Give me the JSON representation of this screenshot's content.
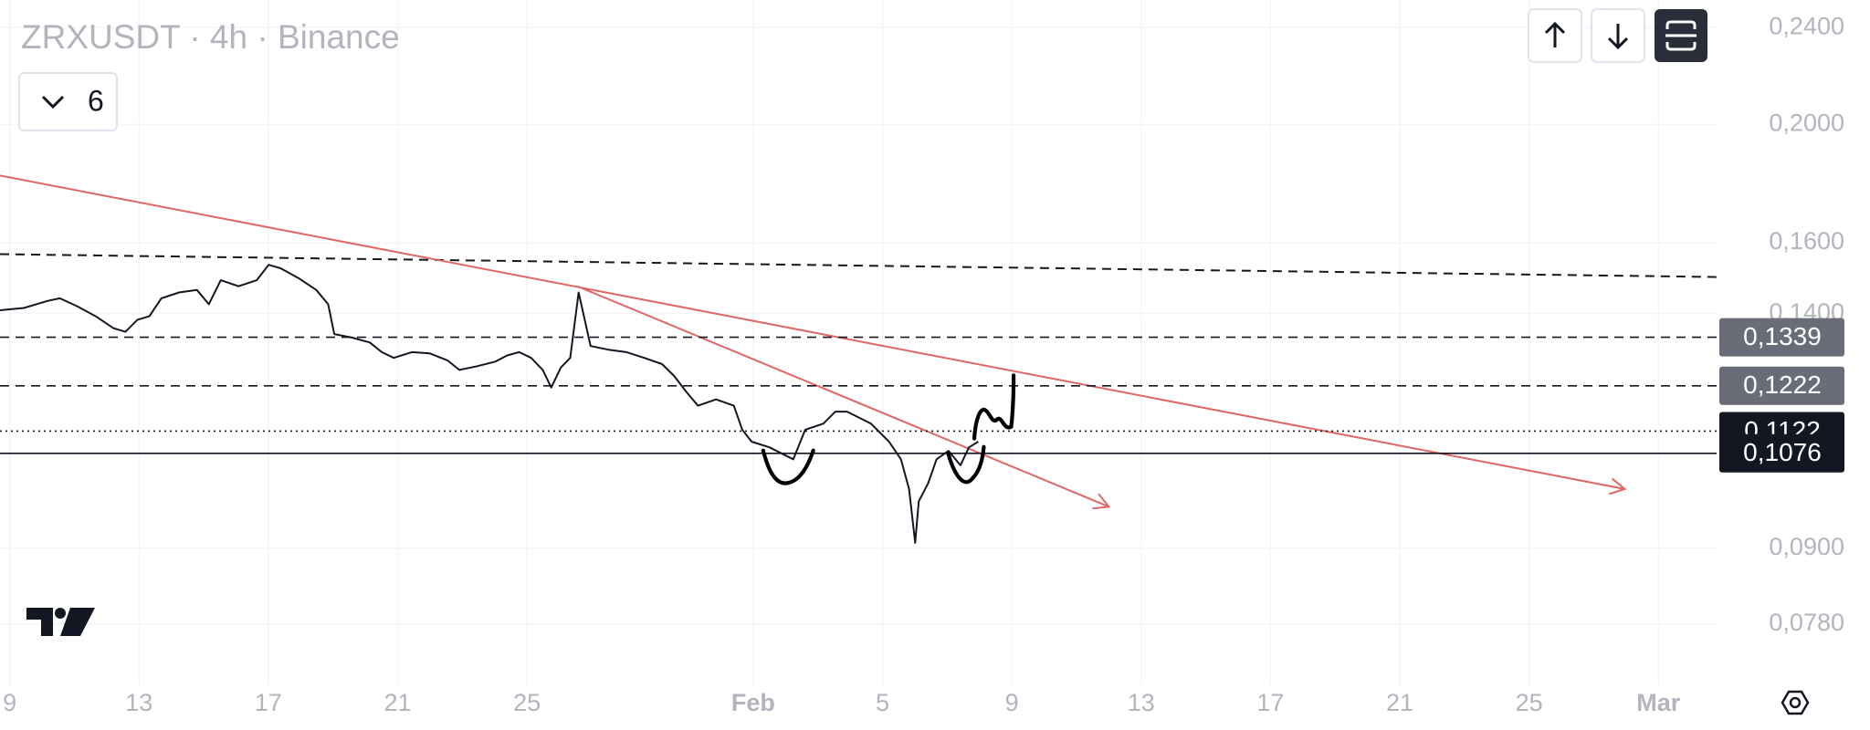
{
  "chart_data": {
    "type": "line",
    "title": "ZRXUSDT · 4h · Binance",
    "indicator_count": 6,
    "log_scale": true,
    "grid": true,
    "x": [
      8.7,
      9.44,
      10.18,
      10.55,
      11.1,
      11.66,
      12.21,
      12.58,
      12.95,
      13.32,
      13.69,
      14.24,
      14.79,
      15.16,
      15.53,
      16.08,
      16.64,
      17.01,
      17.38,
      17.93,
      18.48,
      18.85,
      19.04,
      19.59,
      20.14,
      20.51,
      20.88,
      21.44,
      21.99,
      22.54,
      22.91,
      23.46,
      24.02,
      24.39,
      24.76,
      25.13,
      25.49,
      25.75,
      26.05,
      26.34,
      26.6,
      26.97,
      27.52,
      28.08,
      28.63,
      29.18,
      29.55,
      29.92,
      30.29,
      30.85,
      31.4,
      31.66,
      31.95,
      32.51,
      32.87,
      33.24,
      33.61,
      34.17,
      34.54,
      34.9,
      35.27,
      35.64,
      36.2,
      36.57,
      36.82,
      37.01,
      37.12,
      37.41,
      37.67,
      38.04,
      38.41,
      38.67,
      38.96
    ],
    "series": [
      {
        "color": "#131722",
        "values": [
          0.1409,
          0.1415,
          0.1434,
          0.1441,
          0.1419,
          0.1393,
          0.1362,
          0.1353,
          0.1384,
          0.1393,
          0.1441,
          0.1457,
          0.1464,
          0.1425,
          0.1491,
          0.1474,
          0.1491,
          0.1535,
          0.1525,
          0.1497,
          0.1464,
          0.1425,
          0.1347,
          0.1338,
          0.1326,
          0.1302,
          0.1288,
          0.1302,
          0.1299,
          0.1282,
          0.1259,
          0.1268,
          0.1279,
          0.1294,
          0.1302,
          0.1288,
          0.1259,
          0.1218,
          0.1265,
          0.1288,
          0.1457,
          0.1317,
          0.1308,
          0.1302,
          0.1288,
          0.1273,
          0.1245,
          0.1209,
          0.1177,
          0.1191,
          0.1177,
          0.1125,
          0.11,
          0.1088,
          0.1076,
          0.1064,
          0.1125,
          0.1138,
          0.1164,
          0.1164,
          0.1151,
          0.1138,
          0.11,
          0.1064,
          0.1006,
          0.0909,
          0.0983,
          0.1017,
          0.1064,
          0.1081,
          0.1052,
          0.1088,
          0.11
        ]
      }
    ],
    "xlim": [
      8.7,
      61.8
    ],
    "xticks": [
      9,
      13,
      17,
      21,
      25,
      {
        "value": 32,
        "label": "Feb"
      },
      {
        "value": 36,
        "label": "5"
      },
      {
        "value": 40,
        "label": "9"
      },
      {
        "value": 44,
        "label": "13"
      },
      {
        "value": 48,
        "label": "17"
      },
      {
        "value": 52,
        "label": "21"
      },
      {
        "value": 56,
        "label": "25"
      },
      {
        "value": 60,
        "label": "Mar"
      }
    ],
    "ylim": [
      0.0695,
      0.2528
    ],
    "yticks": [
      {
        "value": 0.24,
        "label": "0,2400"
      },
      {
        "value": 0.2,
        "label": "0,2000"
      },
      {
        "value": 0.16,
        "label": "0,1600"
      },
      {
        "value": 0.14,
        "label": "0,1400"
      },
      {
        "value": 0.09,
        "label": "0,0900"
      },
      {
        "value": 0.078,
        "label": "0,0780"
      }
    ],
    "levels": [
      {
        "value": 0.1339,
        "label": "0,1339",
        "style": "dashed",
        "color": "#131722",
        "label_bg": "#6a6d78"
      },
      {
        "value": 0.1222,
        "label": "0,1222",
        "style": "dashed",
        "color": "#131722",
        "label_bg": "#6a6d78"
      },
      {
        "value": 0.1122,
        "label": "0,1122",
        "style": "dotted",
        "color": "#131722",
        "label_bg": "#131722"
      },
      {
        "value": 0.1076,
        "label": "0,1076",
        "style": "solid",
        "color": "#131722",
        "label_bg": "#131722"
      }
    ],
    "trend_lines": [
      {
        "x": [
          8.7,
          61.8
        ],
        "y": [
          0.1566,
          0.15
        ],
        "color": "#131722",
        "style": "dashed",
        "arrow": false
      },
      {
        "x": [
          8.7,
          58.96
        ],
        "y": [
          0.1816,
          0.1006
        ],
        "color": "#e06666",
        "style": "solid",
        "arrow": true
      },
      {
        "x": [
          26.56,
          43.0
        ],
        "y": [
          0.1474,
          0.0973
        ],
        "color": "#e06666",
        "style": "solid",
        "arrow": true
      }
    ]
  }
}
